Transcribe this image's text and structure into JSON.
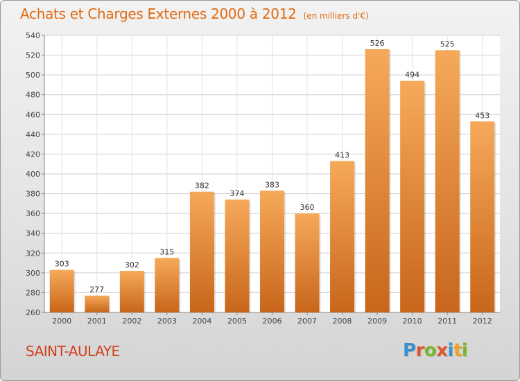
{
  "title": "Achats et Charges Externes 2000 à 2012",
  "unit_label": "(en milliers d'€)",
  "place_name": "SAINT-AULAYE",
  "logo_text": "Proxiti",
  "colors": {
    "title": "#e06a10",
    "place": "#d2401b",
    "bar_light": "#f6a95a",
    "bar_dark": "#c8661a",
    "logo_letters": [
      "#3a8fd0",
      "#e0552d",
      "#7ab62a",
      "#e0552d",
      "#3a8fd0",
      "#f0a020",
      "#7ab62a"
    ]
  },
  "chart_data": {
    "type": "bar",
    "categories": [
      "2000",
      "2001",
      "2002",
      "2003",
      "2004",
      "2005",
      "2006",
      "2007",
      "2008",
      "2009",
      "2010",
      "2011",
      "2012"
    ],
    "values": [
      303,
      277,
      302,
      315,
      382,
      374,
      383,
      360,
      413,
      526,
      494,
      525,
      453
    ],
    "ylim": [
      260,
      540
    ],
    "yticks": [
      260,
      280,
      300,
      320,
      340,
      360,
      380,
      400,
      420,
      440,
      460,
      480,
      500,
      520,
      540
    ],
    "grid": true
  }
}
